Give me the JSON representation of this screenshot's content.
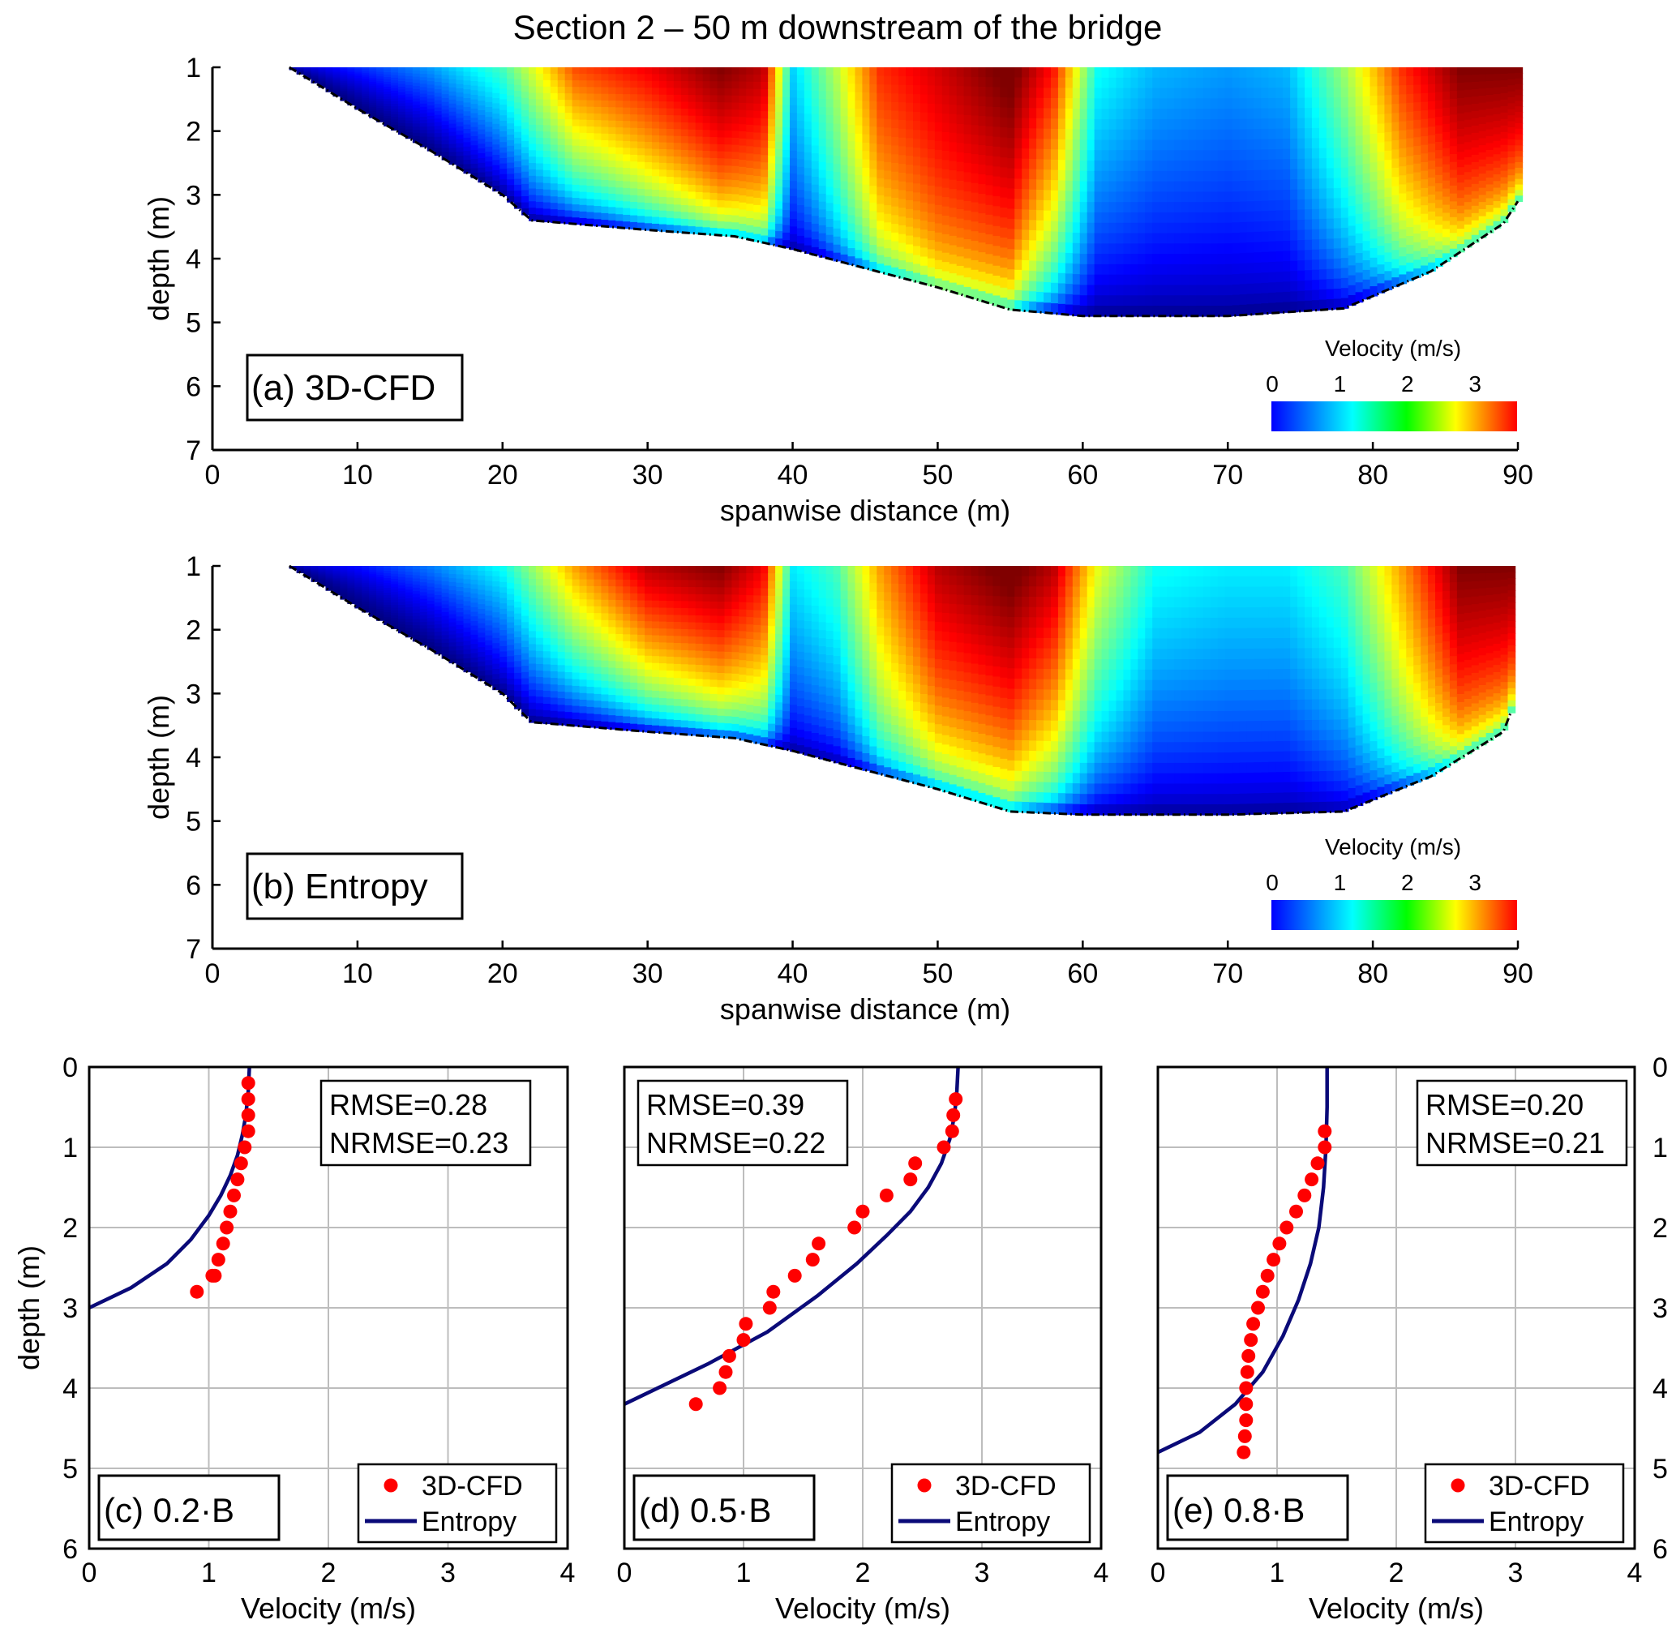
{
  "figure_title": "Section 2 – 50 m downstream of the bridge",
  "chart_data": [
    {
      "type": "heatmap",
      "panel_label": "(a) 3D-CFD",
      "xlabel": "spanwise distance (m)",
      "ylabel": "depth (m)",
      "xlim": [
        0,
        90
      ],
      "ylim": [
        7,
        1
      ],
      "x_ticks": [
        0,
        10,
        20,
        30,
        40,
        50,
        60,
        70,
        80,
        90
      ],
      "y_ticks": [
        1,
        2,
        3,
        4,
        5,
        6,
        7
      ],
      "colorbar": {
        "title": "Velocity (m/s)",
        "ticks": [
          0,
          1,
          2,
          3
        ],
        "range": [
          0,
          3.6
        ],
        "colormap": "jet"
      },
      "bed_profile": {
        "x": [
          5.3,
          10,
          15,
          20,
          22,
          30,
          36,
          40,
          45,
          50,
          55,
          60,
          70,
          78,
          84,
          89,
          90
        ],
        "y": [
          1.0,
          1.65,
          2.3,
          3.0,
          3.4,
          3.55,
          3.65,
          3.85,
          4.15,
          4.45,
          4.8,
          4.9,
          4.9,
          4.78,
          4.2,
          3.45,
          3.1
        ]
      },
      "velocity_field": {
        "x": [
          5,
          10,
          15,
          20,
          25,
          30,
          35,
          38,
          40,
          43,
          46,
          50,
          55,
          58,
          61,
          65,
          70,
          74,
          78,
          82,
          86,
          90
        ],
        "surface": [
          0.2,
          0.6,
          1.0,
          1.6,
          2.9,
          3.2,
          3.6,
          3.4,
          1.2,
          2.0,
          3.0,
          3.3,
          3.7,
          3.1,
          1.4,
          1.1,
          1.0,
          1.1,
          1.9,
          3.0,
          3.6,
          3.6
        ],
        "decay": [
          1.2,
          1.2,
          1.0,
          0.7,
          0.5,
          0.35,
          0.25,
          0.25,
          0.45,
          0.3,
          0.2,
          0.15,
          0.2,
          0.4,
          0.6,
          0.6,
          0.6,
          0.6,
          0.45,
          0.3,
          0.2,
          0.2
        ]
      }
    },
    {
      "type": "heatmap",
      "panel_label": "(b) Entropy",
      "xlabel": "spanwise distance (m)",
      "ylabel": "depth (m)",
      "xlim": [
        0,
        90
      ],
      "ylim": [
        7,
        1
      ],
      "x_ticks": [
        0,
        10,
        20,
        30,
        40,
        50,
        60,
        70,
        80,
        90
      ],
      "y_ticks": [
        1,
        2,
        3,
        4,
        5,
        6,
        7
      ],
      "colorbar": {
        "title": "Velocity (m/s)",
        "ticks": [
          0,
          1,
          2,
          3
        ],
        "range": [
          0,
          3.6
        ],
        "colormap": "jet"
      },
      "bed_profile": {
        "x": [
          5.3,
          10,
          15,
          20,
          22,
          30,
          36,
          40,
          45,
          50,
          55,
          60,
          70,
          78,
          84,
          89,
          89.5
        ],
        "y": [
          1.0,
          1.65,
          2.3,
          3.0,
          3.45,
          3.6,
          3.7,
          3.9,
          4.2,
          4.5,
          4.85,
          4.9,
          4.9,
          4.85,
          4.3,
          3.6,
          3.3
        ]
      },
      "velocity_field": {
        "x": [
          5,
          10,
          15,
          20,
          25,
          30,
          35,
          38,
          40,
          43,
          46,
          50,
          55,
          58,
          61,
          65,
          70,
          74,
          78,
          82,
          86,
          89.5
        ],
        "surface": [
          0.2,
          0.5,
          0.9,
          1.4,
          2.6,
          3.4,
          3.6,
          3.2,
          1.3,
          1.6,
          2.6,
          3.4,
          3.7,
          3.4,
          2.2,
          1.4,
          1.3,
          1.3,
          1.6,
          2.6,
          3.6,
          3.6
        ],
        "decay": [
          1.5,
          1.3,
          1.1,
          0.8,
          0.6,
          0.45,
          0.35,
          0.35,
          0.5,
          0.45,
          0.3,
          0.25,
          0.25,
          0.35,
          0.5,
          0.55,
          0.55,
          0.55,
          0.45,
          0.3,
          0.2,
          0.2
        ]
      }
    },
    {
      "type": "scatter",
      "panel_label": "(c) 0.2·B",
      "xlabel": "Velocity (m/s)",
      "ylabel": "depth (m)",
      "xlim": [
        0,
        4
      ],
      "ylim": [
        6,
        0
      ],
      "x_ticks": [
        0,
        1,
        2,
        3,
        4
      ],
      "y_ticks": [
        0,
        1,
        2,
        3,
        4,
        5,
        6
      ],
      "stats": [
        "RMSE=0.28",
        "NRMSE=0.23"
      ],
      "legend": [
        "3D-CFD",
        "Entropy"
      ],
      "series": [
        {
          "name": "3D-CFD",
          "kind": "points",
          "color": "#ff0000",
          "x": [
            1.33,
            1.33,
            1.33,
            1.33,
            1.3,
            1.27,
            1.24,
            1.21,
            1.18,
            1.15,
            1.12,
            1.08,
            1.05,
            1.03,
            0.9
          ],
          "y": [
            0.2,
            0.4,
            0.6,
            0.8,
            1.0,
            1.2,
            1.4,
            1.6,
            1.8,
            2.0,
            2.2,
            2.4,
            2.6,
            2.6,
            2.8
          ]
        },
        {
          "name": "Entropy",
          "kind": "line",
          "color": "#0a0a78",
          "x": [
            1.34,
            1.33,
            1.31,
            1.28,
            1.24,
            1.18,
            1.1,
            1.0,
            0.85,
            0.65,
            0.35,
            0.0
          ],
          "y": [
            0.0,
            0.3,
            0.6,
            0.85,
            1.1,
            1.35,
            1.6,
            1.85,
            2.15,
            2.45,
            2.75,
            3.0
          ]
        }
      ]
    },
    {
      "type": "scatter",
      "panel_label": "(d) 0.5·B",
      "xlabel": "Velocity (m/s)",
      "ylabel": "depth (m)",
      "xlim": [
        0,
        4
      ],
      "ylim": [
        6,
        0
      ],
      "x_ticks": [
        0,
        1,
        2,
        3,
        4
      ],
      "y_ticks": [
        0,
        1,
        2,
        3,
        4,
        5,
        6
      ],
      "stats": [
        "RMSE=0.39",
        "NRMSE=0.22"
      ],
      "legend": [
        "3D-CFD",
        "Entropy"
      ],
      "series": [
        {
          "name": "3D-CFD",
          "kind": "points",
          "color": "#ff0000",
          "x": [
            2.78,
            2.76,
            2.75,
            2.68,
            2.44,
            2.4,
            2.2,
            2.0,
            1.93,
            1.63,
            1.58,
            1.43,
            1.25,
            1.22,
            1.02,
            1.0,
            0.88,
            0.85,
            0.8,
            0.6
          ],
          "y": [
            0.4,
            0.6,
            0.8,
            1.0,
            1.2,
            1.4,
            1.6,
            1.8,
            2.0,
            2.2,
            2.4,
            2.6,
            2.8,
            3.0,
            3.2,
            3.4,
            3.6,
            3.8,
            4.0,
            4.2
          ]
        },
        {
          "name": "Entropy",
          "kind": "line",
          "color": "#0a0a78",
          "x": [
            2.8,
            2.79,
            2.77,
            2.73,
            2.66,
            2.55,
            2.4,
            2.2,
            1.95,
            1.62,
            1.2,
            0.7,
            0.0
          ],
          "y": [
            0.0,
            0.3,
            0.6,
            0.9,
            1.2,
            1.5,
            1.8,
            2.1,
            2.45,
            2.85,
            3.3,
            3.7,
            4.2
          ]
        }
      ]
    },
    {
      "type": "scatter",
      "panel_label": "(e) 0.8·B",
      "xlabel": "Velocity (m/s)",
      "ylabel": "depth (m)",
      "xlim": [
        0,
        4
      ],
      "ylim": [
        6,
        0
      ],
      "x_ticks": [
        0,
        1,
        2,
        3,
        4
      ],
      "y_ticks": [
        0,
        1,
        2,
        3,
        4,
        5,
        6
      ],
      "stats": [
        "RMSE=0.20",
        "NRMSE=0.21"
      ],
      "legend": [
        "3D-CFD",
        "Entropy"
      ],
      "series": [
        {
          "name": "3D-CFD",
          "kind": "points",
          "color": "#ff0000",
          "x": [
            1.4,
            1.4,
            1.34,
            1.29,
            1.23,
            1.16,
            1.08,
            1.02,
            0.97,
            0.92,
            0.88,
            0.84,
            0.8,
            0.78,
            0.76,
            0.75,
            0.74,
            0.74,
            0.74,
            0.73,
            0.72
          ],
          "y": [
            0.8,
            1.0,
            1.2,
            1.4,
            1.6,
            1.8,
            2.0,
            2.2,
            2.4,
            2.6,
            2.8,
            3.0,
            3.2,
            3.4,
            3.6,
            3.8,
            4.0,
            4.2,
            4.4,
            4.6,
            4.8
          ]
        },
        {
          "name": "Entropy",
          "kind": "line",
          "color": "#0a0a78",
          "x": [
            1.42,
            1.42,
            1.41,
            1.39,
            1.35,
            1.28,
            1.18,
            1.05,
            0.88,
            0.65,
            0.35,
            0.0
          ],
          "y": [
            0.0,
            0.5,
            1.0,
            1.5,
            2.0,
            2.45,
            2.9,
            3.35,
            3.8,
            4.2,
            4.55,
            4.8
          ]
        }
      ]
    }
  ]
}
